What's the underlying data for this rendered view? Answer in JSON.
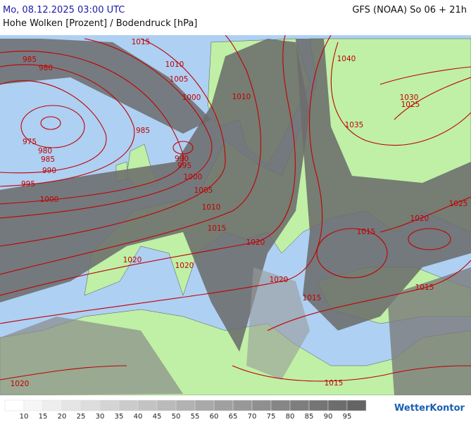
{
  "header": {
    "datetime": "Mo, 08.12.2025 03:00 UTC",
    "model": "GFS (NOAA) So 06 + 21h",
    "subtitle": "Hohe Wolken [Prozent] / Bodendruck [hPa]"
  },
  "map": {
    "isobar_labels": [
      1015,
      985,
      980,
      1010,
      1005,
      1000,
      1010,
      1040,
      1030,
      1025,
      1035,
      985,
      975,
      980,
      985,
      990,
      990,
      995,
      995,
      1000,
      1005,
      1000,
      1010,
      1025,
      1020,
      1015,
      1015,
      1020,
      1020,
      1020,
      1020,
      1015,
      1015,
      1015,
      1020
    ]
  },
  "legend": {
    "labels": [
      10,
      15,
      20,
      25,
      30,
      35,
      40,
      45,
      50,
      55,
      60,
      65,
      70,
      75,
      80,
      85,
      90,
      95
    ]
  },
  "logo": "WetterKontor"
}
